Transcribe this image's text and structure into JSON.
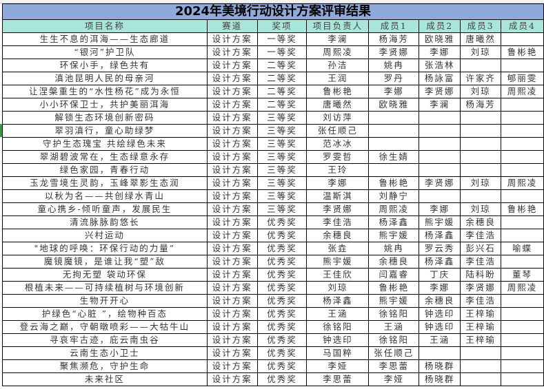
{
  "title": "2024年美境行动设计方案评审结果",
  "headers": [
    "项目名称",
    "赛道",
    "奖项",
    "项目负责人",
    "成员1",
    "成员2",
    "成员3",
    "成员4"
  ],
  "rows": [
    [
      "生生不息的洱海——生态廊道",
      "设计方案",
      "一等奖",
      "李澜",
      "杨海芳",
      "欧晓雅",
      "唐曦然",
      ""
    ],
    [
      "“银河”护卫队",
      "设计方案",
      "一等奖",
      "周熙凌",
      "李贤娜",
      "李娜",
      "刘琼",
      "鲁彬艳"
    ],
    [
      "环保小手，绿色共有",
      "设计方案",
      "二等奖",
      "孙洁",
      "姚冉",
      "张浩林",
      "",
      ""
    ],
    [
      "滇池昆明人民的母亲河",
      "设计方案",
      "二等奖",
      "王润",
      "罗丹",
      "杨詠富",
      "许家齐",
      "郇丽雯"
    ],
    [
      "让涅槃重生的“水性杨花”成为永恒",
      "设计方案",
      "二等奖",
      "鲁彬艳",
      "李娜",
      "李贤娜",
      "刘琼",
      "周熙凌"
    ],
    [
      "小小环保卫士，共护美丽洱海",
      "设计方案",
      "二等奖",
      "唐曦然",
      "欧晓雅",
      "李澜",
      "杨海芳",
      ""
    ],
    [
      "解锁生态环境创新密码",
      "设计方案",
      "三等奖",
      "刘访萍",
      "",
      "",
      "",
      ""
    ],
    [
      "翠羽滇行，童心助绿梦",
      "设计方案",
      "三等奖",
      "张任顺己",
      "",
      "",
      "",
      ""
    ],
    [
      "守护生态瑰宝 共绘绿色未来",
      "设计方案",
      "三等奖",
      "范冰冰",
      "",
      "",
      "",
      ""
    ],
    [
      "翠湖碧波常在，生态绿意永存",
      "设计方案",
      "三等奖",
      "罗雯哲",
      "徐生婧",
      "",
      "",
      ""
    ],
    [
      "绿色家园，青春行动",
      "设计方案",
      "三等奖",
      "王玲",
      "",
      "",
      "",
      ""
    ],
    [
      "玉龙雪境生灵韵，玉峰翠影生态润",
      "设计方案",
      "三等奖",
      "李娜",
      "鲁彬艳",
      "李贤娜",
      "刘琼",
      "周熙凌"
    ],
    [
      "以秋为名——共创绿水青山",
      "设计方案",
      "三等奖",
      "温斯淇",
      "刘静宁",
      "",
      "",
      ""
    ],
    [
      "童心携乡-倾听童声，发展民生",
      "设计方案",
      "三等奖",
      "李贤娜",
      "周熙凌",
      "李娜",
      "刘琼",
      "鲁彬艳"
    ],
    [
      "清流脉脉韵悠长",
      "设计方案",
      "优秀奖",
      "李佳浩",
      "杨泽鑫",
      "熊宇媛",
      "余穗良",
      ""
    ],
    [
      "兴村运动",
      "设计方案",
      "优秀奖",
      "余穗良",
      "熊宇媛",
      "杨泽鑫",
      "李佳浩",
      ""
    ],
    [
      "\"地球的呼唤：环保行动的力量”",
      "设计方案",
      "优秀奖",
      "张垚",
      "姚冉",
      "罗云秀",
      "彭兴石",
      "喻蝶"
    ],
    [
      "魔镜魔镜，是谁让我“塑”敌",
      "设计方案",
      "优秀奖",
      "熊宇媛",
      "余穗良",
      "杨泽鑫",
      "李佳浩",
      ""
    ],
    [
      "无拘无塑 袋动环保",
      "设计方案",
      "优秀奖",
      "王佳欣",
      "闫嘉睿",
      "丁庆",
      "陆科盼",
      "董琴"
    ],
    [
      "根植未来——可持续植树与环境创新",
      "设计方案",
      "优秀奖",
      "刘琼",
      "鲁彬艳",
      "李娜",
      "李贤娜",
      "周熙凌"
    ],
    [
      "生物开开心",
      "设计方案",
      "优秀奖",
      "杨泽鑫",
      "熊宇媛",
      "余穗良",
      "李佳浩",
      ""
    ],
    [
      "护绿色“心脏 ”，绘物种百态",
      "设计方案",
      "优秀奖",
      "王涵",
      "徐铭阳",
      "钟选印",
      "王梓瑜",
      ""
    ],
    [
      "登云海之巅，守朝暾喷彩——大牯牛山",
      "设计方案",
      "优秀奖",
      "徐铭阳",
      "王涵",
      "钟选印",
      "王梓瑜",
      ""
    ],
    [
      "寻哀牢古迹，庇云南虫谷",
      "设计方案",
      "优秀奖",
      "钟选印",
      "徐铭阳",
      "王涵",
      "王梓瑜",
      ""
    ],
    [
      "云南生态小卫士",
      "设计方案",
      "优秀奖",
      "马国粹",
      "张任顺己",
      "",
      "",
      ""
    ],
    [
      "聚焦濒危，守护生命",
      "设计方案",
      "优秀奖",
      "李娅",
      "李思蕾",
      "杨晓群",
      "",
      ""
    ],
    [
      "未来社区",
      "设计方案",
      "优秀奖",
      "李思蕾",
      "李娅",
      "杨晓群",
      "",
      ""
    ]
  ],
  "colors": {
    "title_bg": "#8eaadb",
    "header_bg": "#a8e6dc",
    "grid": "#000000"
  }
}
